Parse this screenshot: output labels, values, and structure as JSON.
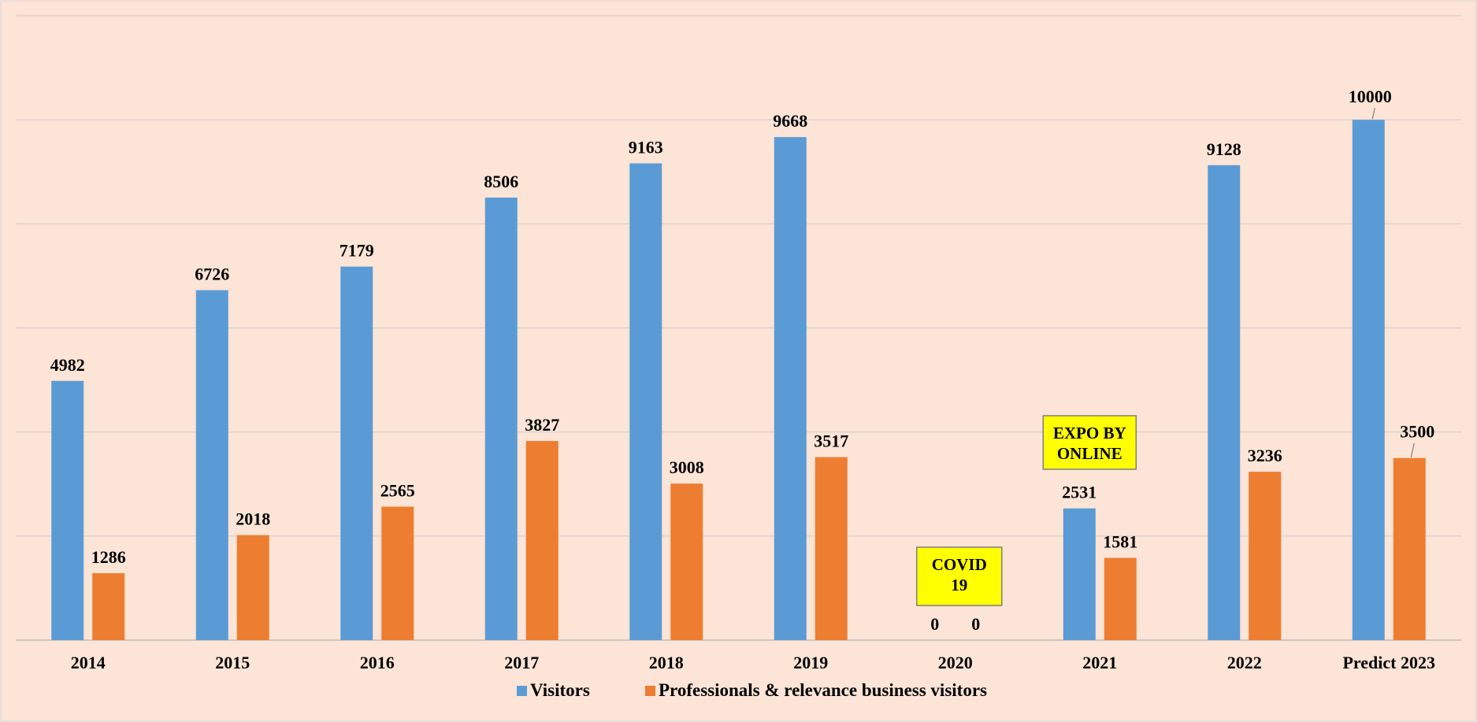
{
  "chart_data": {
    "type": "bar",
    "title": "",
    "xlabel": "",
    "ylabel": "",
    "ylim": [
      0,
      12000
    ],
    "gridlines": [
      0,
      2000,
      4000,
      6000,
      8000,
      10000,
      12000
    ],
    "y_tick_labels_shown": false,
    "grid": true,
    "legend_position": "bottom",
    "categories": [
      "2014",
      "2015",
      "2016",
      "2017",
      "2018",
      "2019",
      "2020",
      "2021",
      "2022",
      "Predict 2023"
    ],
    "series": [
      {
        "name": "Visitors",
        "color": "#5b9bd5",
        "values": [
          4982,
          6726,
          7179,
          8506,
          9163,
          9668,
          0,
          2531,
          9128,
          10000
        ]
      },
      {
        "name": "Professionals & relevance business visitors",
        "color": "#ed7d31",
        "values": [
          1286,
          2018,
          2565,
          3827,
          3008,
          3517,
          0,
          1581,
          3236,
          3500
        ]
      }
    ],
    "annotations": [
      {
        "category": "2020",
        "lines": [
          "COVID",
          "19"
        ],
        "fill": "#ffff00"
      },
      {
        "category": "2021",
        "lines": [
          "EXPO BY",
          "ONLINE"
        ],
        "fill": "#ffff00"
      }
    ]
  }
}
